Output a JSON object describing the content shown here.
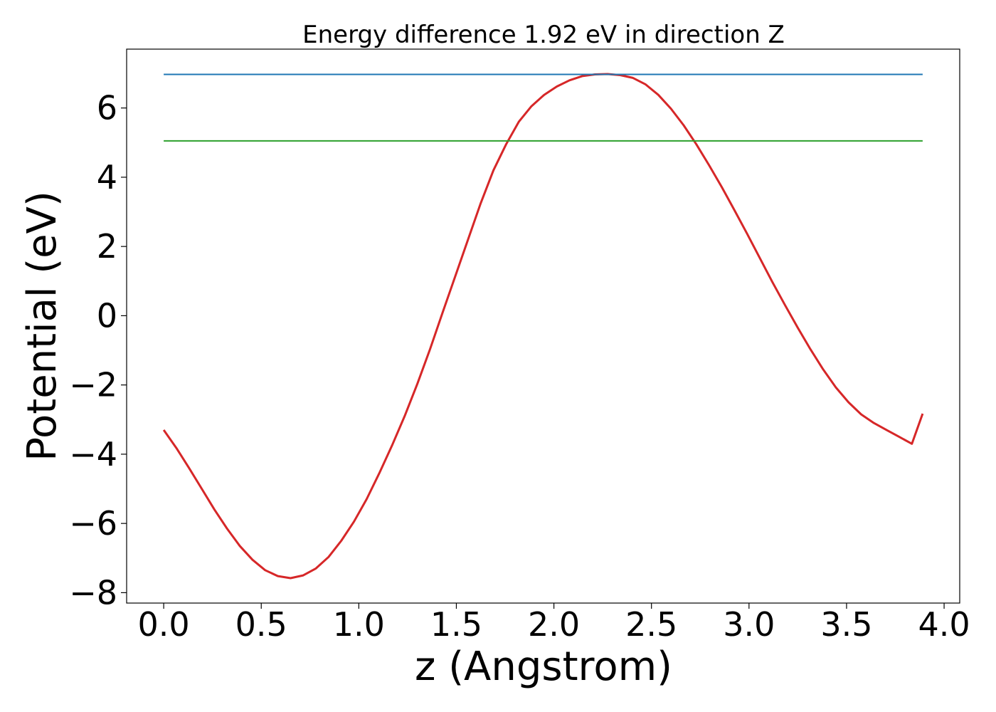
{
  "chart_data": {
    "type": "line",
    "title": "Energy difference 1.92 eV in direction Z",
    "xlabel": "z (Angstrom)",
    "ylabel": "Potential (eV)",
    "xlim": [
      -0.19,
      4.08
    ],
    "ylim": [
      -8.3,
      7.7
    ],
    "xticks": [
      0.0,
      0.5,
      1.0,
      1.5,
      2.0,
      2.5,
      3.0,
      3.5,
      4.0
    ],
    "xtick_labels": [
      "0.0",
      "0.5",
      "1.0",
      "1.5",
      "2.0",
      "2.5",
      "3.0",
      "3.5",
      "4.0"
    ],
    "yticks": [
      -8,
      -6,
      -4,
      -2,
      0,
      2,
      4,
      6
    ],
    "ytick_labels": [
      "−8",
      "−6",
      "−4",
      "−2",
      "0",
      "2",
      "4",
      "6"
    ],
    "grid": false,
    "series": [
      {
        "color": "#d62728",
        "x": [
          0.0,
          0.065,
          0.13,
          0.195,
          0.26,
          0.325,
          0.39,
          0.455,
          0.52,
          0.585,
          0.65,
          0.715,
          0.78,
          0.845,
          0.91,
          0.975,
          1.04,
          1.105,
          1.17,
          1.235,
          1.3,
          1.365,
          1.43,
          1.495,
          1.56,
          1.625,
          1.69,
          1.755,
          1.82,
          1.885,
          1.95,
          2.015,
          2.08,
          2.145,
          2.21,
          2.275,
          2.34,
          2.405,
          2.47,
          2.535,
          2.6,
          2.665,
          2.73,
          2.795,
          2.86,
          2.925,
          2.99,
          3.055,
          3.12,
          3.185,
          3.25,
          3.315,
          3.38,
          3.445,
          3.51,
          3.575,
          3.64,
          3.705,
          3.77,
          3.835,
          3.89
        ],
        "y": [
          -3.3,
          -3.82,
          -4.4,
          -5.0,
          -5.6,
          -6.15,
          -6.65,
          -7.05,
          -7.35,
          -7.52,
          -7.58,
          -7.5,
          -7.3,
          -6.97,
          -6.5,
          -5.95,
          -5.3,
          -4.55,
          -3.75,
          -2.9,
          -1.97,
          -0.97,
          0.1,
          1.15,
          2.2,
          3.25,
          4.2,
          4.95,
          5.6,
          6.05,
          6.38,
          6.62,
          6.8,
          6.92,
          6.97,
          6.98,
          6.95,
          6.87,
          6.68,
          6.38,
          5.98,
          5.5,
          4.95,
          4.35,
          3.72,
          3.05,
          2.37,
          1.67,
          0.97,
          0.3,
          -0.35,
          -0.97,
          -1.55,
          -2.07,
          -2.5,
          -2.85,
          -3.1,
          -3.3,
          -3.5,
          -3.7,
          -2.83
        ]
      },
      {
        "color": "#1f77b4",
        "x": [
          0.0,
          3.89
        ],
        "y": [
          6.97,
          6.97
        ]
      },
      {
        "color": "#2ca02c",
        "x": [
          0.0,
          3.89
        ],
        "y": [
          5.05,
          5.05
        ]
      }
    ]
  }
}
